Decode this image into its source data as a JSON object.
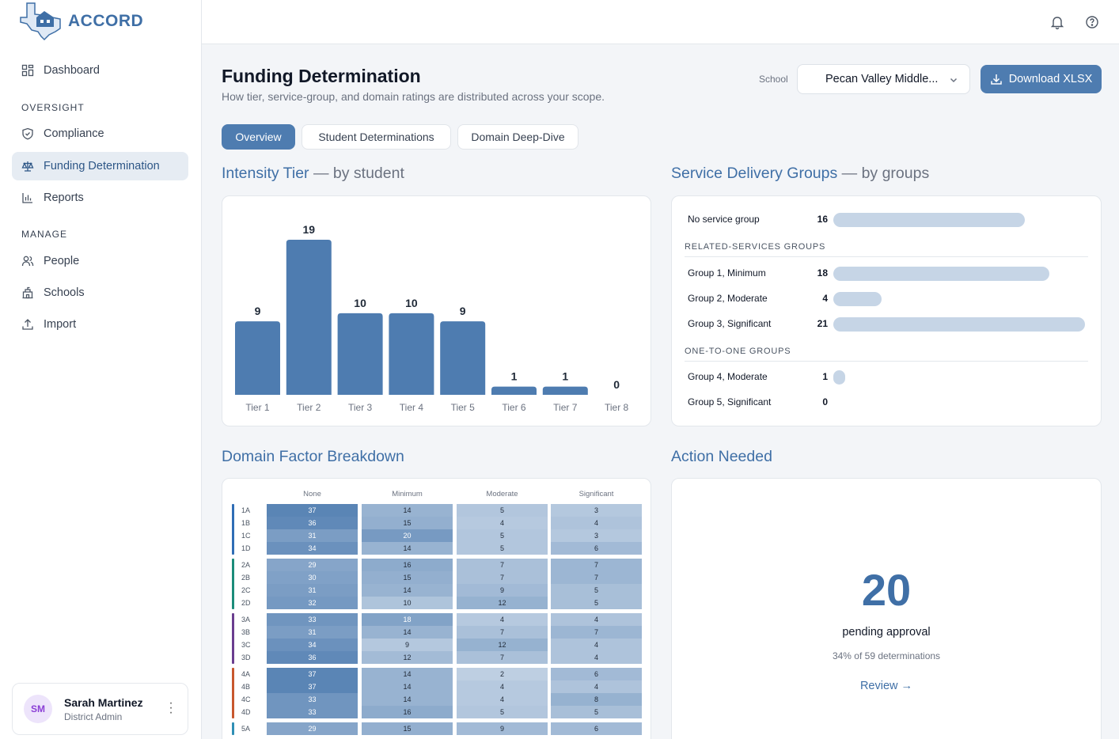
{
  "app": {
    "name": "ACCORD"
  },
  "sidebar": {
    "dashboard": "Dashboard",
    "oversight_header": "OVERSIGHT",
    "compliance": "Compliance",
    "funding": "Funding Determination",
    "reports": "Reports",
    "manage_header": "MANAGE",
    "people": "People",
    "schools": "Schools",
    "import": "Import"
  },
  "user": {
    "initials": "SM",
    "name": "Sarah Martinez",
    "role": "District Admin"
  },
  "header": {
    "title": "Funding Determination",
    "subtitle": "How tier, service-group, and domain ratings are distributed across your scope.",
    "school_label": "School",
    "school_value": "Pecan Valley Middle...",
    "download_label": "Download XLSX"
  },
  "tabs": [
    "Overview",
    "Student Determinations",
    "Domain Deep-Dive"
  ],
  "intensity": {
    "title": "Intensity Tier",
    "sub": "— by student"
  },
  "chart_data": {
    "type": "bar",
    "categories": [
      "Tier 1",
      "Tier 2",
      "Tier 3",
      "Tier 4",
      "Tier 5",
      "Tier 6",
      "Tier 7",
      "Tier 8"
    ],
    "values": [
      9,
      19,
      10,
      10,
      9,
      1,
      1,
      0
    ],
    "ylim": [
      0,
      19
    ],
    "bar_color": "#4e7cb0"
  },
  "sdg": {
    "title": "Service Delivery Groups",
    "sub": "— by groups",
    "no_group": {
      "label": "No service group",
      "value": 16
    },
    "related_header": "RELATED-SERVICES GROUPS",
    "related": [
      {
        "label": "Group 1, Minimum",
        "value": 18
      },
      {
        "label": "Group 2, Moderate",
        "value": 4
      },
      {
        "label": "Group 3, Significant",
        "value": 21
      }
    ],
    "one_header": "ONE-TO-ONE GROUPS",
    "one": [
      {
        "label": "Group 4, Moderate",
        "value": 1
      },
      {
        "label": "Group 5, Significant",
        "value": 0
      }
    ],
    "max": 21
  },
  "domain": {
    "title": "Domain Factor Breakdown",
    "columns": [
      "None",
      "Minimum",
      "Moderate",
      "Significant"
    ],
    "groups": [
      {
        "color": "#2f6db5",
        "rows": [
          [
            "1A",
            37,
            14,
            5,
            3
          ],
          [
            "1B",
            36,
            15,
            4,
            4
          ],
          [
            "1C",
            31,
            20,
            5,
            3
          ],
          [
            "1D",
            34,
            14,
            5,
            6
          ]
        ]
      },
      {
        "color": "#1c8c7a",
        "rows": [
          [
            "2A",
            29,
            16,
            7,
            7
          ],
          [
            "2B",
            30,
            15,
            7,
            7
          ],
          [
            "2C",
            31,
            14,
            9,
            5
          ],
          [
            "2D",
            32,
            10,
            12,
            5
          ]
        ]
      },
      {
        "color": "#6a3d8f",
        "rows": [
          [
            "3A",
            33,
            18,
            4,
            4
          ],
          [
            "3B",
            31,
            14,
            7,
            7
          ],
          [
            "3C",
            34,
            9,
            12,
            4
          ],
          [
            "3D",
            36,
            12,
            7,
            4
          ]
        ]
      },
      {
        "color": "#c8572e",
        "rows": [
          [
            "4A",
            37,
            14,
            2,
            6
          ],
          [
            "4B",
            37,
            14,
            4,
            4
          ],
          [
            "4C",
            33,
            14,
            4,
            8
          ],
          [
            "4D",
            33,
            16,
            5,
            5
          ]
        ]
      },
      {
        "color": "#2f8fb5",
        "rows": [
          [
            "5A",
            29,
            15,
            9,
            6
          ]
        ]
      }
    ]
  },
  "action": {
    "title": "Action Needed",
    "count": "20",
    "label": "pending approval",
    "sub": "34% of 59 determinations",
    "review": "Review →"
  }
}
